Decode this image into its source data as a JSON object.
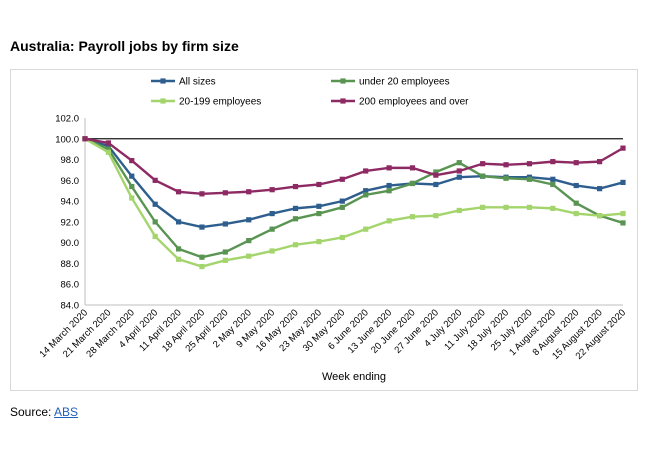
{
  "title": "Australia: Payroll jobs by firm size",
  "source": {
    "prefix": "Source: ",
    "link_text": "ABS"
  },
  "chart_data": {
    "type": "line",
    "title": "",
    "xlabel": "Week ending",
    "ylabel": "",
    "ylim": [
      84.0,
      102.0
    ],
    "ytick_step": 2.0,
    "yticks": [
      "84.0",
      "86.0",
      "88.0",
      "90.0",
      "92.0",
      "94.0",
      "96.0",
      "98.0",
      "100.0",
      "102.0"
    ],
    "reference_line": 100.0,
    "grid": false,
    "legend_position": "top",
    "categories": [
      "14 March 2020",
      "21 March 2020",
      "28 March 2020",
      "4 April 2020",
      "11 April 2020",
      "18 April 2020",
      "25 April 2020",
      "2 May 2020",
      "9 May 2020",
      "16 May 2020",
      "23 May 2020",
      "30 May 2020",
      "6 June 2020",
      "13 June 2020",
      "20 June 2020",
      "27 June 2020",
      "4 July 2020",
      "11 July 2020",
      "18 July 2020",
      "25 July 2020",
      "1 August 2020",
      "8 August 2020",
      "15 August 2020",
      "22 August 2020"
    ],
    "series": [
      {
        "name": "All sizes",
        "color": "#2e5e8e",
        "values": [
          100.0,
          99.3,
          96.4,
          93.7,
          92.0,
          91.5,
          91.8,
          92.2,
          92.8,
          93.3,
          93.5,
          94.0,
          95.0,
          95.5,
          95.7,
          95.6,
          96.3,
          96.4,
          96.3,
          96.3,
          96.1,
          95.5,
          95.2,
          95.8
        ]
      },
      {
        "name": "under 20 employees",
        "color": "#5a9453",
        "values": [
          100.0,
          99.0,
          95.4,
          92.0,
          89.4,
          88.6,
          89.1,
          90.2,
          91.3,
          92.3,
          92.8,
          93.4,
          94.6,
          95.0,
          95.7,
          96.8,
          97.7,
          96.4,
          96.2,
          96.1,
          95.6,
          93.8,
          92.6,
          91.9
        ]
      },
      {
        "name": "20-199 employees",
        "color": "#a4d46c",
        "values": [
          100.0,
          98.7,
          94.3,
          90.6,
          88.4,
          87.7,
          88.3,
          88.7,
          89.2,
          89.8,
          90.1,
          90.5,
          91.3,
          92.1,
          92.5,
          92.6,
          93.1,
          93.4,
          93.4,
          93.4,
          93.3,
          92.8,
          92.6,
          92.8
        ]
      },
      {
        "name": "200 employees and over",
        "color": "#8e2a63",
        "values": [
          100.0,
          99.6,
          97.9,
          96.0,
          94.9,
          94.7,
          94.8,
          94.9,
          95.1,
          95.4,
          95.6,
          96.1,
          96.9,
          97.2,
          97.2,
          96.5,
          96.9,
          97.6,
          97.5,
          97.6,
          97.8,
          97.7,
          97.8,
          99.1
        ]
      }
    ]
  }
}
